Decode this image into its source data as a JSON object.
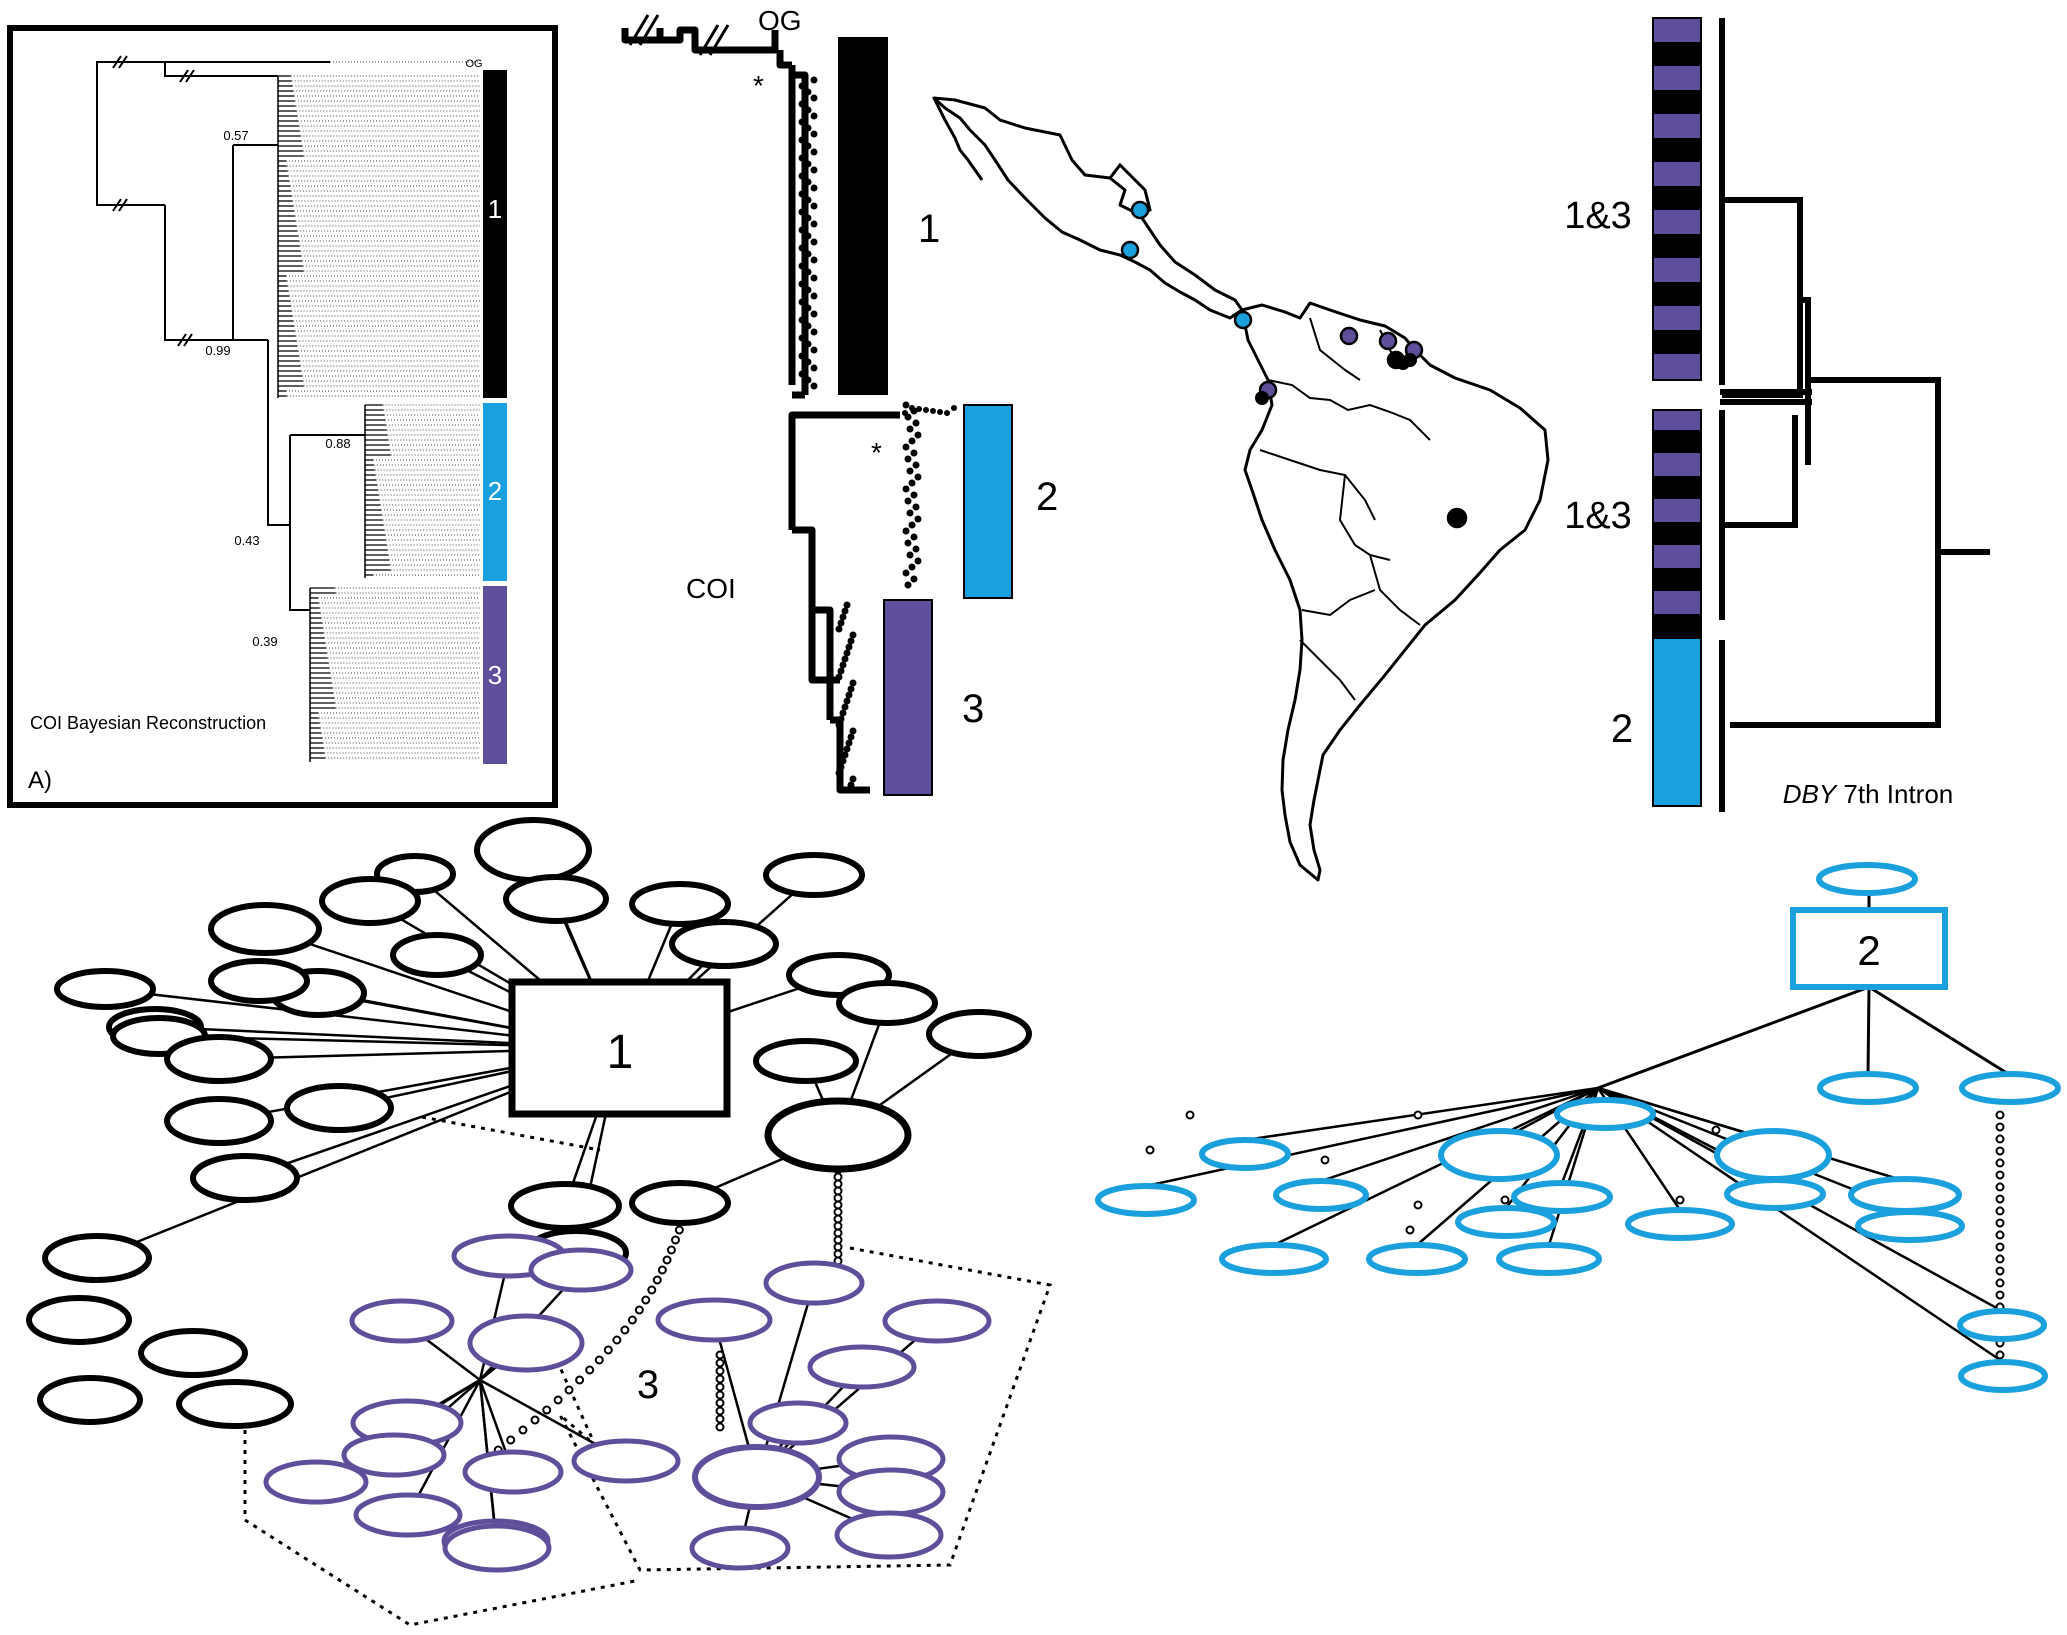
{
  "colors": {
    "clade1": "#000000",
    "clade2": "#1aa0dc",
    "clade3": "#5f4e9a",
    "line": "#000000"
  },
  "panel_a": {
    "title": "COI Bayesian Reconstruction",
    "panel_label": "A)",
    "outgroup_label": "OG",
    "posteriors": [
      "0.57",
      "0.99",
      "0.88",
      "0.43",
      "0.39"
    ],
    "clade_labels": [
      "1",
      "2",
      "3"
    ]
  },
  "coi_tree": {
    "label": "COI",
    "outgroup_label": "OG",
    "support_marks": [
      "*",
      "*"
    ],
    "clade_labels": [
      "1",
      "2",
      "3"
    ]
  },
  "map": {
    "sample_sites": [
      {
        "clade": "2"
      },
      {
        "clade": "2"
      },
      {
        "clade": "2"
      },
      {
        "clade": "3"
      },
      {
        "clade": "3"
      },
      {
        "clade": "3"
      },
      {
        "clade": "3"
      },
      {
        "clade": "1"
      },
      {
        "clade": "1"
      }
    ]
  },
  "dby_tree": {
    "title_italic": "DBY",
    "title_rest": " 7th Intron",
    "clade_labels": [
      "1&3",
      "1&3",
      "2"
    ]
  },
  "networks": {
    "haplogroup_1_label": "1",
    "haplogroup_2_label": "2",
    "haplogroup_3_label": "3"
  }
}
